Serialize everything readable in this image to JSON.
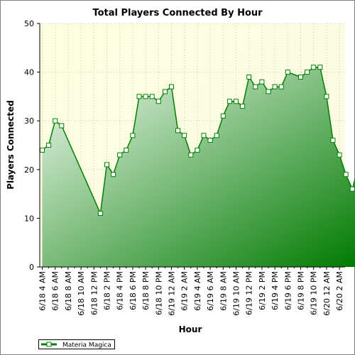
{
  "chart_data": {
    "type": "area",
    "title": "Total Players Connected By Hour",
    "xlabel": "Hour",
    "ylabel": "Players Connected",
    "ylim": [
      0,
      50
    ],
    "yticks": [
      0,
      10,
      20,
      30,
      40,
      50
    ],
    "x_tick_labels": [
      "6/18 4 AM",
      "6/18 6 AM",
      "6/18 8 AM",
      "6/18 10 AM",
      "6/18 12 PM",
      "6/18 2 PM",
      "6/18 4 PM",
      "6/18 6 PM",
      "6/18 8 PM",
      "6/18 10 PM",
      "6/19 12 AM",
      "6/19 2 AM",
      "6/19 4 AM",
      "6/19 6 AM",
      "6/19 8 AM",
      "6/19 10 AM",
      "6/19 12 PM",
      "6/19 2 PM",
      "6/19 4 PM",
      "6/19 6 PM",
      "6/19 8 PM",
      "6/19 10 PM",
      "6/20 12 AM",
      "6/20 2 AM"
    ],
    "grid": true,
    "legend_position": "bottom-left",
    "series": [
      {
        "name": "Materia Magica",
        "color": "#008000",
        "points": [
          {
            "x": "6/18 3 AM",
            "y": 24
          },
          {
            "x": "6/18 4 AM",
            "y": 25
          },
          {
            "x": "6/18 5 AM",
            "y": 30
          },
          {
            "x": "6/18 6 AM",
            "y": 29
          },
          {
            "x": "6/18 12 PM",
            "y": 11
          },
          {
            "x": "6/18 1 PM",
            "y": 21
          },
          {
            "x": "6/18 2 PM",
            "y": 19
          },
          {
            "x": "6/18 3 PM",
            "y": 23
          },
          {
            "x": "6/18 4 PM",
            "y": 24
          },
          {
            "x": "6/18 5 PM",
            "y": 27
          },
          {
            "x": "6/18 6 PM",
            "y": 35
          },
          {
            "x": "6/18 7 PM",
            "y": 35
          },
          {
            "x": "6/18 8 PM",
            "y": 35
          },
          {
            "x": "6/18 9 PM",
            "y": 34
          },
          {
            "x": "6/18 10 PM",
            "y": 36
          },
          {
            "x": "6/18 11 PM",
            "y": 37
          },
          {
            "x": "6/19 12 AM",
            "y": 28
          },
          {
            "x": "6/19 1 AM",
            "y": 27
          },
          {
            "x": "6/19 2 AM",
            "y": 23
          },
          {
            "x": "6/19 3 AM",
            "y": 24
          },
          {
            "x": "6/19 4 AM",
            "y": 27
          },
          {
            "x": "6/19 5 AM",
            "y": 26
          },
          {
            "x": "6/19 6 AM",
            "y": 27
          },
          {
            "x": "6/19 7 AM",
            "y": 31
          },
          {
            "x": "6/19 8 AM",
            "y": 34
          },
          {
            "x": "6/19 9 AM",
            "y": 34
          },
          {
            "x": "6/19 10 AM",
            "y": 33
          },
          {
            "x": "6/19 11 AM",
            "y": 39
          },
          {
            "x": "6/19 12 PM",
            "y": 37
          },
          {
            "x": "6/19 1 PM",
            "y": 38
          },
          {
            "x": "6/19 2 PM",
            "y": 36
          },
          {
            "x": "6/19 3 PM",
            "y": 37
          },
          {
            "x": "6/19 4 PM",
            "y": 37
          },
          {
            "x": "6/19 5 PM",
            "y": 40
          },
          {
            "x": "6/19 7 PM",
            "y": 39
          },
          {
            "x": "6/19 8 PM",
            "y": 40
          },
          {
            "x": "6/19 9 PM",
            "y": 41
          },
          {
            "x": "6/19 10 PM",
            "y": 41
          },
          {
            "x": "6/19 11 PM",
            "y": 35
          },
          {
            "x": "6/20 12 AM",
            "y": 26
          },
          {
            "x": "6/20 1 AM",
            "y": 23
          },
          {
            "x": "6/20 2 AM",
            "y": 19
          },
          {
            "x": "6/20 3 AM",
            "y": 16
          },
          {
            "x": "6/20 4 AM",
            "y": 21
          }
        ]
      }
    ]
  }
}
